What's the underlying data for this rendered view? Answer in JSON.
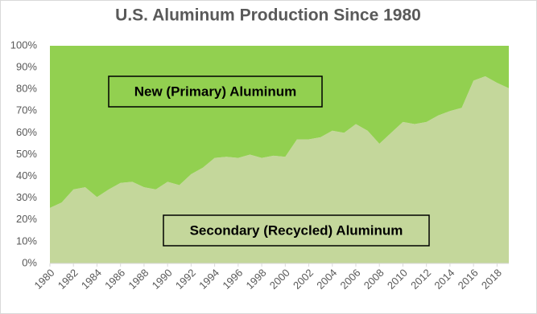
{
  "chart_data": {
    "type": "stacked-area-100",
    "title": "U.S. Aluminum Production Since 1980",
    "x": [
      1980,
      1981,
      1982,
      1983,
      1984,
      1985,
      1986,
      1987,
      1988,
      1989,
      1990,
      1991,
      1992,
      1993,
      1994,
      1995,
      1996,
      1997,
      1998,
      1999,
      2000,
      2001,
      2002,
      2003,
      2004,
      2005,
      2006,
      2007,
      2008,
      2009,
      2010,
      2011,
      2012,
      2013,
      2014,
      2015,
      2016,
      2017,
      2018,
      2019
    ],
    "series": [
      {
        "name": "Secondary (Recycled) Aluminum",
        "color": "#c4d79b",
        "values": [
          25.5,
          28,
          34,
          35,
          30.5,
          34,
          37,
          37.5,
          35,
          34,
          37.5,
          36,
          41,
          44,
          48.5,
          49,
          48.5,
          50,
          48.5,
          49.5,
          49,
          57,
          57,
          58,
          61,
          60,
          64,
          61,
          55,
          60,
          65,
          64,
          65,
          68,
          70,
          71.5,
          84,
          86,
          83,
          80.5
        ]
      },
      {
        "name": "New (Primary) Aluminum",
        "color": "#92d050",
        "values": [
          74.5,
          72,
          66,
          65,
          69.5,
          66,
          63,
          62.5,
          65,
          66,
          62.5,
          64,
          59,
          56,
          51.5,
          51,
          51.5,
          50,
          51.5,
          50.5,
          51,
          43,
          43,
          42,
          39,
          40,
          36,
          39,
          45,
          40,
          35,
          36,
          35,
          32,
          30,
          28.5,
          16,
          14,
          17,
          19.5
        ]
      }
    ],
    "xlim": [
      1980,
      2019
    ],
    "xticks": [
      1980,
      1982,
      1984,
      1986,
      1988,
      1990,
      1992,
      1994,
      1996,
      1998,
      2000,
      2002,
      2004,
      2006,
      2008,
      2010,
      2012,
      2014,
      2016,
      2018
    ],
    "ylim": [
      0,
      100
    ],
    "yticks": [
      {
        "value": 0,
        "label": "0%"
      },
      {
        "value": 10,
        "label": "10%"
      },
      {
        "value": 20,
        "label": "20%"
      },
      {
        "value": 30,
        "label": "30%"
      },
      {
        "value": 40,
        "label": "40%"
      },
      {
        "value": 50,
        "label": "50%"
      },
      {
        "value": 60,
        "label": "60%"
      },
      {
        "value": 70,
        "label": "70%"
      },
      {
        "value": 80,
        "label": "80%"
      },
      {
        "value": 90,
        "label": "90%"
      },
      {
        "value": 100,
        "label": "100%"
      }
    ]
  }
}
